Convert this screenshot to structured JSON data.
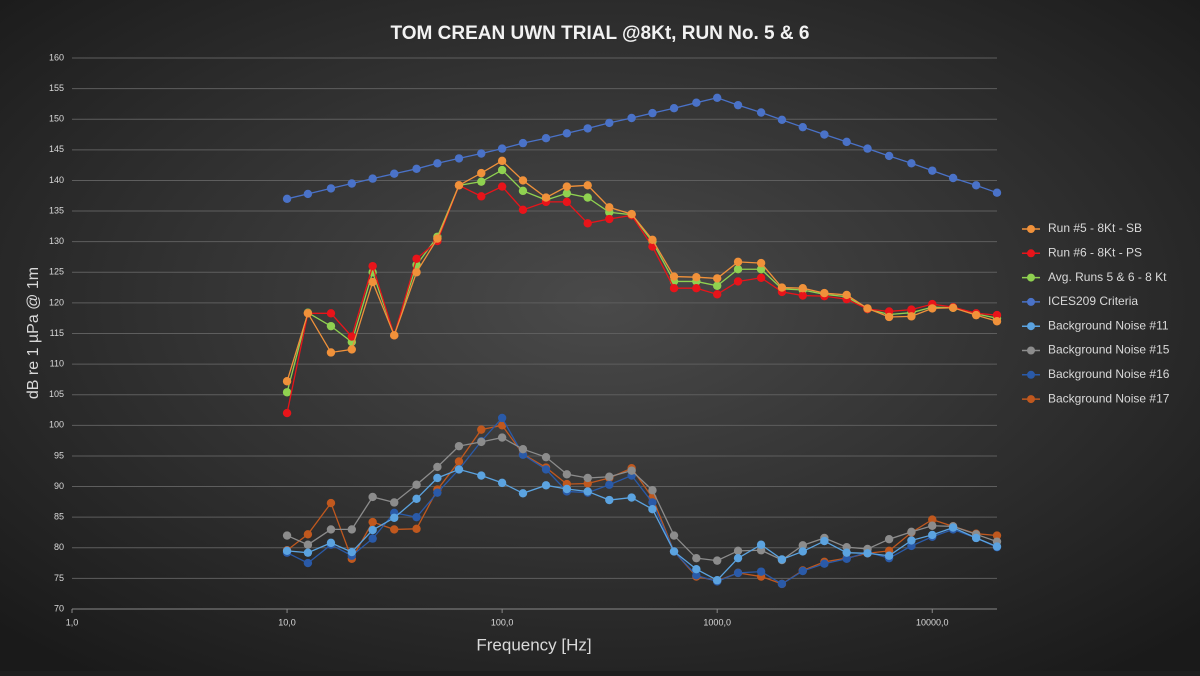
{
  "chart_data": {
    "type": "line",
    "title": "TOM CREAN UWN TRIAL @8Kt, RUN No. 5 & 6",
    "x_label": "Frequency [Hz]",
    "y_label": "dB re 1 µPa @ 1m",
    "x": [
      10,
      12.5,
      16,
      20,
      25,
      31.5,
      40,
      50,
      63,
      80,
      100,
      125,
      160,
      200,
      250,
      315,
      400,
      500,
      630,
      800,
      1000,
      1250,
      1600,
      2000,
      2500,
      3150,
      4000,
      5000,
      6300,
      8000,
      10000,
      12500,
      16000,
      20000
    ],
    "x_log": true,
    "xlim": [
      1,
      20000
    ],
    "xticks": [
      {
        "value": 1,
        "label": "1,0"
      },
      {
        "value": 10,
        "label": "10,0"
      },
      {
        "value": 100,
        "label": "100,0"
      },
      {
        "value": 1000,
        "label": "1000,0"
      },
      {
        "value": 10000,
        "label": "10000,0"
      }
    ],
    "ylim": [
      70,
      160
    ],
    "yticks": [
      70,
      75,
      80,
      85,
      90,
      95,
      100,
      105,
      110,
      115,
      120,
      125,
      130,
      135,
      140,
      145,
      150,
      155,
      160
    ],
    "grid": true,
    "legend": "right",
    "series": [
      {
        "name": "Run #5 - 8Kt - SB",
        "color": "#f0913a",
        "values": [
          107.2,
          118.3,
          111.9,
          112.4,
          123.4,
          114.7,
          125,
          130.5,
          139.2,
          141.2,
          143.2,
          140,
          137.2,
          139,
          139.2,
          135.6,
          134.5,
          130.3,
          124.3,
          124.2,
          124,
          126.7,
          126.5,
          122.5,
          122.4,
          121.6,
          121.3,
          119.1,
          117.7,
          117.8,
          119.1,
          119.2,
          118,
          117
        ]
      },
      {
        "name": "Run #6 - 8Kt - PS",
        "color": "#e8141a",
        "values": [
          102,
          118.3,
          118.3,
          114.5,
          126,
          114.7,
          127.2,
          130.1,
          139.2,
          137.4,
          139,
          135.2,
          136.5,
          136.5,
          133,
          133.7,
          134.3,
          129.2,
          122.4,
          122.4,
          121.4,
          123.5,
          124.1,
          121.8,
          121.2,
          121.1,
          120.6,
          119,
          118.6,
          118.9,
          119.8,
          119.3,
          118.3,
          118
        ]
      },
      {
        "name": "Avg. Runs 5 & 6 - 8 Kt",
        "color": "#8fd150",
        "values": [
          105.4,
          118.4,
          116.2,
          113.6,
          125,
          114.7,
          126.2,
          130.8,
          139.2,
          139.8,
          141.7,
          138.3,
          136.8,
          137.9,
          137.2,
          134.8,
          134.4,
          130,
          123.5,
          123.5,
          122.8,
          125.5,
          125.5,
          122.3,
          122.1,
          121.4,
          121,
          119,
          118.1,
          118.4,
          119.3,
          119.2,
          118.2,
          117.5
        ]
      },
      {
        "name": "ICES209 Criteria",
        "color": "#4a72c8",
        "values": [
          137,
          137.8,
          138.7,
          139.5,
          140.3,
          141.1,
          141.9,
          142.8,
          143.6,
          144.4,
          145.2,
          146.1,
          146.9,
          147.7,
          148.5,
          149.4,
          150.2,
          151,
          151.8,
          152.7,
          153.5,
          152.3,
          151.1,
          149.9,
          148.7,
          147.5,
          146.3,
          145.2,
          144,
          142.8,
          141.6,
          140.4,
          139.2,
          138
        ]
      },
      {
        "name": "Background Noise #11",
        "color": "#5ba3e0",
        "values": [
          79.5,
          79.2,
          80.8,
          79.3,
          82.9,
          84.9,
          88,
          91.4,
          92.8,
          91.8,
          90.6,
          88.9,
          90.2,
          89.6,
          89.2,
          87.8,
          88.2,
          86.3,
          79.4,
          76.5,
          74.7,
          78.3,
          80.5,
          78.1,
          79.4,
          81.1,
          79.2,
          79.1,
          78.7,
          81.2,
          82.1,
          83.3,
          81.6,
          80.2
        ]
      },
      {
        "name": "Background Noise #15",
        "color": "#8c8c8c",
        "values": [
          82,
          80.5,
          83,
          83,
          88.3,
          87.4,
          90.3,
          93.2,
          96.6,
          97.3,
          98,
          96.1,
          94.8,
          92,
          91.4,
          91.6,
          92.6,
          89.4,
          82,
          78.3,
          77.9,
          79.5,
          79.6,
          78,
          80.4,
          81.6,
          80.1,
          79.8,
          81.4,
          82.6,
          83.6,
          83.5,
          82.2,
          81
        ]
      },
      {
        "name": "Background Noise #16",
        "color": "#2a5aa8",
        "values": [
          79.2,
          77.5,
          80.5,
          78.7,
          81.5,
          85.7,
          85,
          89,
          92.8,
          97.4,
          101.2,
          95.2,
          92.8,
          89.2,
          89,
          90.3,
          91.8,
          87.4,
          79.4,
          75.5,
          74.5,
          75.9,
          76.1,
          74.1,
          76.2,
          77.4,
          78.2,
          79.3,
          78.3,
          80.3,
          81.8,
          83,
          81.6,
          80.1
        ]
      },
      {
        "name": "Background Noise #17",
        "color": "#c0581e",
        "values": [
          79.6,
          82.2,
          87.3,
          78.2,
          84.2,
          83,
          83.1,
          89.5,
          94.1,
          99.3,
          100,
          95.3,
          93.1,
          90.4,
          90.5,
          91.4,
          93,
          88.2,
          79.4,
          75.3,
          74.6,
          75.9,
          75.3,
          74.1,
          76.3,
          77.7,
          78.3,
          79.1,
          79.5,
          82.5,
          84.6,
          83.5,
          82.3,
          82
        ]
      }
    ]
  }
}
